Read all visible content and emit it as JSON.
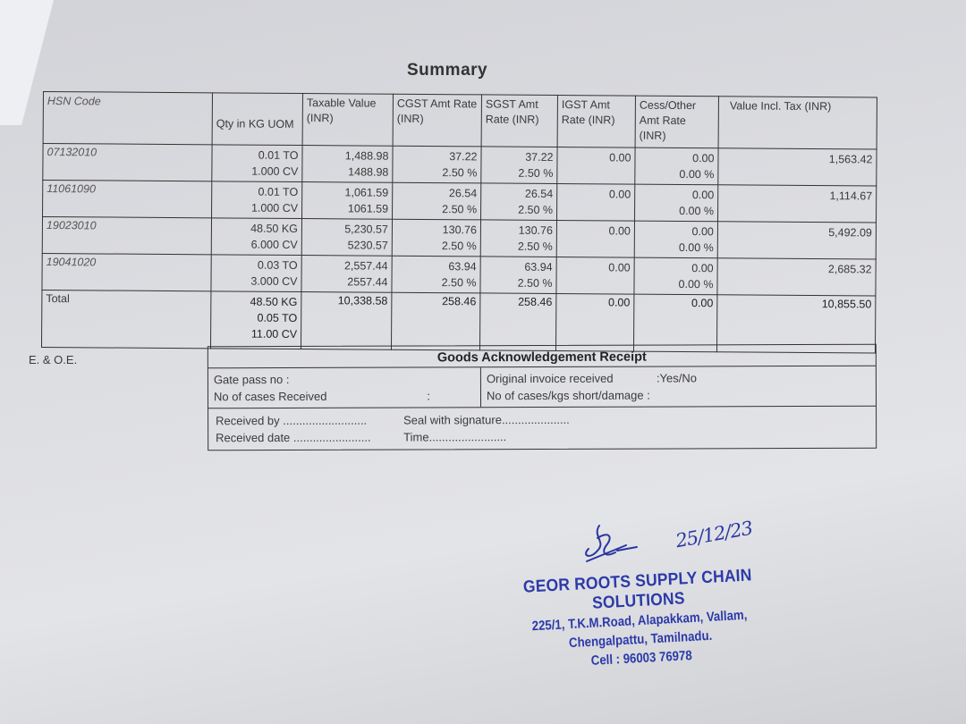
{
  "summary": {
    "title": "Summary",
    "headers": [
      "HSN Code",
      "Qty in KG UOM",
      "Taxable Value (INR)",
      "CGST Amt Rate (INR)",
      "SGST Amt Rate (INR)",
      "IGST Amt Rate (INR)",
      "Cess/Other Amt Rate (INR)",
      "Value Incl. Tax (INR)"
    ],
    "rows": [
      {
        "hsn": "07132010",
        "qty1": "0.01 TO",
        "qty2": "1.000 CV",
        "tax1": "1,488.98",
        "tax2": "1488.98",
        "cgst": "37.22",
        "cgst_rate": "2.50 %",
        "sgst": "37.22",
        "sgst_rate": "2.50 %",
        "igst": "0.00",
        "cess": "0.00",
        "cess_rate": "0.00 %",
        "total": "1,563.42"
      },
      {
        "hsn": "11061090",
        "qty1": "0.01 TO",
        "qty2": "1.000 CV",
        "tax1": "1,061.59",
        "tax2": "1061.59",
        "cgst": "26.54",
        "cgst_rate": "2.50 %",
        "sgst": "26.54",
        "sgst_rate": "2.50 %",
        "igst": "0.00",
        "cess": "0.00",
        "cess_rate": "0.00 %",
        "total": "1,114.67"
      },
      {
        "hsn": "19023010",
        "qty1": "48.50 KG",
        "qty2": "6.000 CV",
        "tax1": "5,230.57",
        "tax2": "5230.57",
        "cgst": "130.76",
        "cgst_rate": "2.50 %",
        "sgst": "130.76",
        "sgst_rate": "2.50 %",
        "igst": "0.00",
        "cess": "0.00",
        "cess_rate": "0.00 %",
        "total": "5,492.09"
      },
      {
        "hsn": "19041020",
        "qty1": "0.03 TO",
        "qty2": "3.000 CV",
        "tax1": "2,557.44",
        "tax2": "2557.44",
        "cgst": "63.94",
        "cgst_rate": "2.50 %",
        "sgst": "63.94",
        "sgst_rate": "2.50 %",
        "igst": "0.00",
        "cess": "0.00",
        "cess_rate": "0.00 %",
        "total": "2,685.32"
      }
    ],
    "total": {
      "label": "Total",
      "qty1": "48.50 KG",
      "qty2": "0.05 TO",
      "qty3": "11.00 CV",
      "taxable": "10,338.58",
      "cgst": "258.46",
      "sgst": "258.46",
      "igst": "0.00",
      "cess": "0.00",
      "value": "10,855.50"
    }
  },
  "eoe": "E. & O.E.",
  "receipt": {
    "title": "Goods Acknowledgement Receipt",
    "gate_pass": "Gate pass no   :",
    "cases_received": "No of cases Received",
    "cases_colon": ":",
    "original_invoice": "Original invoice received",
    "yes_no": ":Yes/No",
    "short_damage": "No of cases/kgs short/damage   :",
    "received_by": "Received by ..........................",
    "seal": "Seal with signature.....................",
    "received_date": "Received date ........................",
    "time": "Time........................"
  },
  "stamp": {
    "company": "GEOR ROOTS SUPPLY CHAIN SOLUTIONS",
    "address1": "225/1, T.K.M.Road, Alapakkam, Vallam,",
    "address2": "Chengalpattu, Tamilnadu.",
    "cell": "Cell : 96003 76978",
    "ink_color": "#2c3aa8"
  },
  "signature": {
    "handwritten_date": "25/12/23"
  }
}
